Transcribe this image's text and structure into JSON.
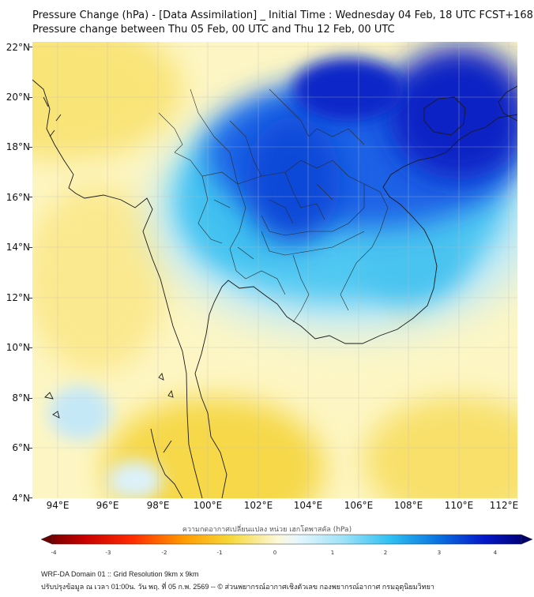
{
  "header": {
    "title_line1": "Pressure Change (hPa) - [Data Assimilation] _ Initial Time : Wednesday 04 Feb, 18 UTC FCST+168",
    "title_line2": "Pressure change between Thu 05 Feb, 00 UTC and Thu 12 Feb, 00 UTC"
  },
  "map": {
    "lat_labels": [
      "22°N",
      "20°N",
      "18°N",
      "16°N",
      "14°N",
      "12°N",
      "10°N",
      "8°N",
      "6°N",
      "4°N"
    ],
    "lon_labels": [
      "94°E",
      "96°E",
      "98°E",
      "100°E",
      "102°E",
      "104°E",
      "106°E",
      "108°E",
      "110°E",
      "112°E"
    ],
    "colors": {
      "background_field": "#fdf6c4",
      "strong_rise": "#0a1ccc",
      "moderate_rise": "#1fb8ee",
      "slight_rise": "#bfe8f7",
      "slight_fall": "#f8e25a",
      "coastline": "#1a1a1a"
    }
  },
  "colorbar": {
    "title": "ความกดอากาศเปลี่ยนแปลง หน่วย เฮกโตพาสคัล (hPa)",
    "ticks": [
      "-4",
      "-3",
      "-2",
      "-1",
      "0",
      "1",
      "2",
      "3",
      "4"
    ]
  },
  "footer": {
    "line1": "WRF-DA Domain 01 :: Grid Resolution 9km x 9km",
    "line2": "ปรับปรุงข้อมูล ณ เวลา 01:00น. วัน พฤ. ที่ 05 ก.พ. 2569 -- © ส่วนพยากรณ์อากาศเชิงตัวเลข กองพยากรณ์อากาศ กรมอุตุนิยมวิทยา"
  }
}
